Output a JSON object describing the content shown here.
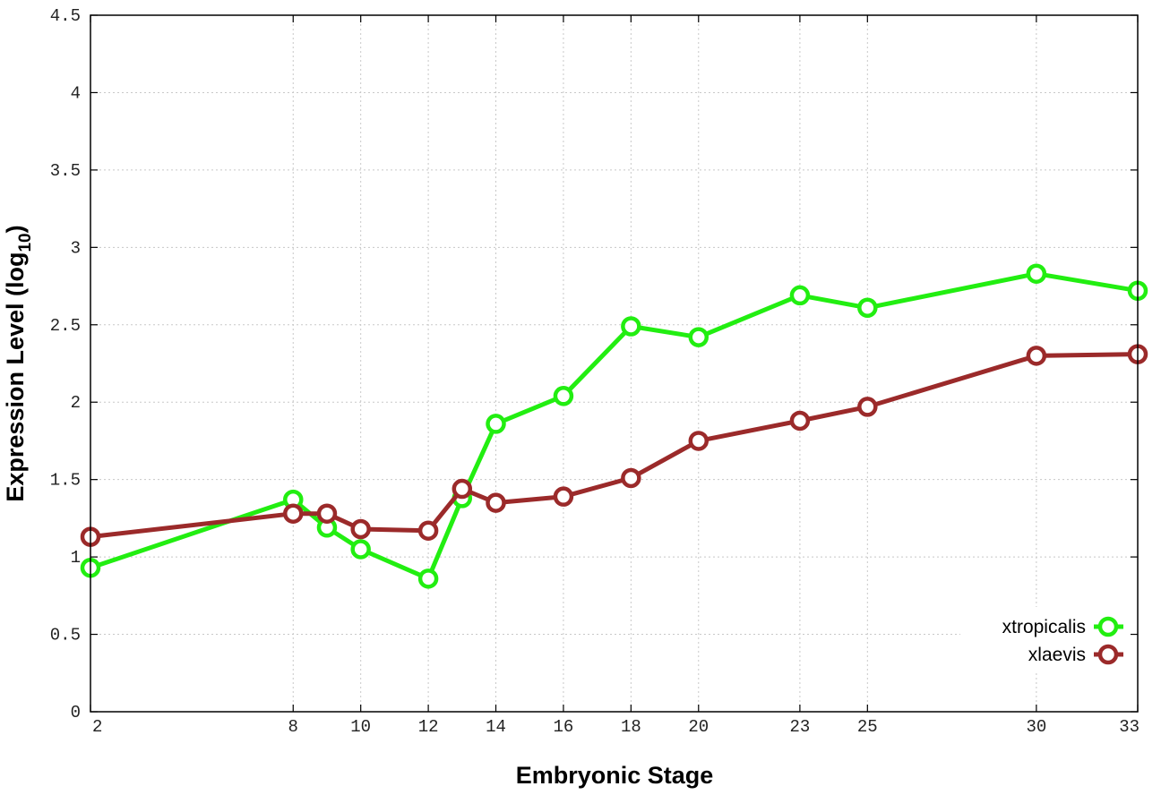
{
  "chart_data": {
    "type": "line",
    "xlabel": "Embryonic Stage",
    "ylabel_main": "Expression Level (log",
    "ylabel_sub": "10",
    "ylabel_close": ")",
    "xlim": [
      2,
      33
    ],
    "ylim": [
      0,
      4.5
    ],
    "x_ticks": [
      2,
      8,
      10,
      12,
      14,
      16,
      18,
      20,
      23,
      25,
      30,
      33
    ],
    "y_ticks": [
      0,
      0.5,
      1,
      1.5,
      2,
      2.5,
      3,
      3.5,
      4,
      4.5
    ],
    "x_tick_labels": [
      "2",
      "8",
      "10",
      "12",
      "14",
      "16",
      "18",
      "20",
      "23",
      "25",
      "30",
      "33"
    ],
    "y_tick_labels": [
      "0",
      "0.5",
      "1",
      "1.5",
      "2",
      "2.5",
      "3",
      "3.5",
      "4",
      "4.5"
    ],
    "grid": true,
    "legend_position": "bottom-right",
    "series": [
      {
        "name": "xtropicalis",
        "color": "#22ee11",
        "x": [
          2,
          8,
          9,
          10,
          12,
          13,
          14,
          16,
          18,
          20,
          23,
          25,
          30,
          33
        ],
        "y": [
          0.93,
          1.37,
          1.19,
          1.05,
          0.86,
          1.38,
          1.86,
          2.04,
          2.49,
          2.42,
          2.69,
          2.61,
          2.83,
          2.72
        ]
      },
      {
        "name": "xlaevis",
        "color": "#9b2a2a",
        "x": [
          2,
          8,
          9,
          10,
          12,
          13,
          14,
          16,
          18,
          20,
          23,
          25,
          30,
          33
        ],
        "y": [
          1.13,
          1.28,
          1.28,
          1.18,
          1.17,
          1.44,
          1.35,
          1.39,
          1.51,
          1.75,
          1.88,
          1.97,
          2.3,
          2.31
        ]
      }
    ]
  }
}
